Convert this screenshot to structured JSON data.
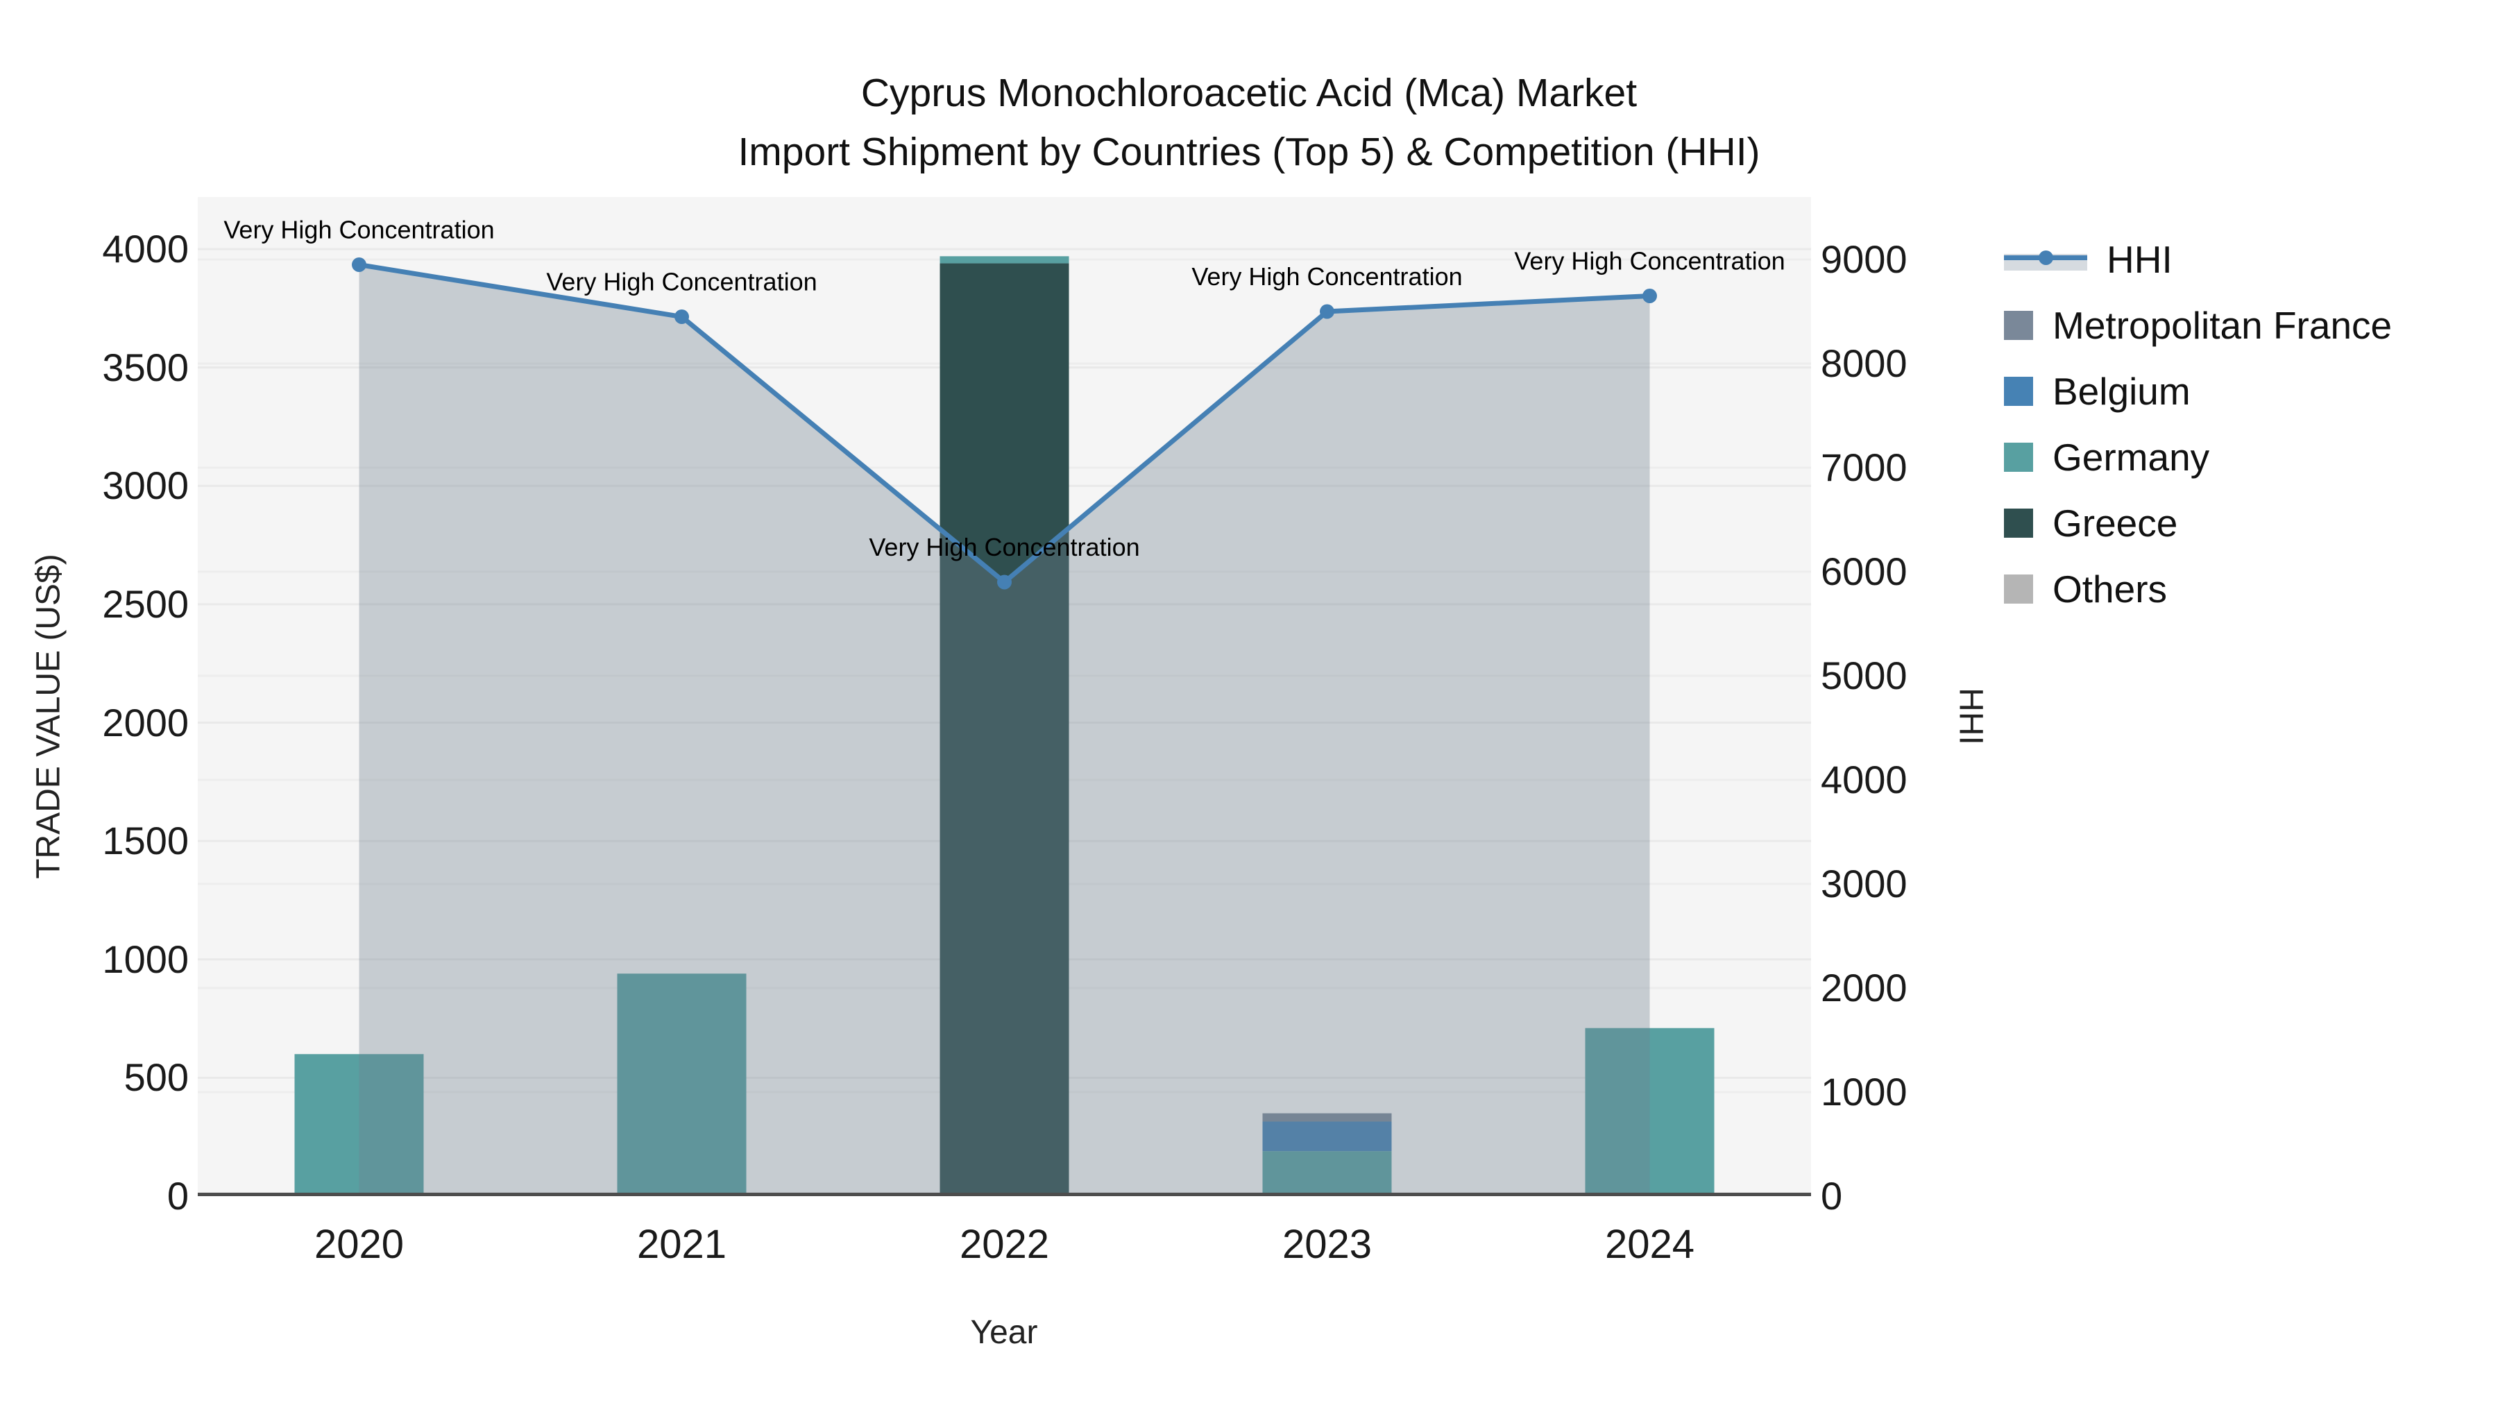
{
  "title": {
    "line1": "Cyprus Monochloroacetic Acid (Mca) Market",
    "line2": "Import Shipment by Countries (Top 5) & Competition (HHI)"
  },
  "axes": {
    "x": {
      "label": "Year",
      "categories": [
        "2020",
        "2021",
        "2022",
        "2023",
        "2024"
      ]
    },
    "y_left": {
      "label": "TRADE VALUE (US$)",
      "ticks": [
        "0",
        "500",
        "1000",
        "1500",
        "2000",
        "2500",
        "3000",
        "3500",
        "4000"
      ]
    },
    "y_right": {
      "label": "HHI",
      "ticks": [
        "0",
        "1000",
        "2000",
        "3000",
        "4000",
        "5000",
        "6000",
        "7000",
        "8000",
        "9000"
      ]
    }
  },
  "legend": {
    "items": [
      {
        "label": "HHI",
        "type": "line",
        "color": "#4580b4"
      },
      {
        "label": "Metropolitan France",
        "type": "bar",
        "color": "#7a8899"
      },
      {
        "label": "Belgium",
        "type": "bar",
        "color": "#4682b4"
      },
      {
        "label": "Germany",
        "type": "bar",
        "color": "#58a0a1"
      },
      {
        "label": "Greece",
        "type": "bar",
        "color": "#2f4f4f"
      },
      {
        "label": "Others",
        "type": "bar",
        "color": "#b5b5b5"
      }
    ]
  },
  "annotations": [
    {
      "year": "2020",
      "text": "Very High Concentration"
    },
    {
      "year": "2021",
      "text": "Very High Concentration"
    },
    {
      "year": "2022",
      "text": "Very High Concentration"
    },
    {
      "year": "2023",
      "text": "Very High Concentration"
    },
    {
      "year": "2024",
      "text": "Very High Concentration"
    }
  ],
  "chart_data": {
    "type": "bar+line",
    "title": "Cyprus Monochloroacetic Acid (Mca) Market Import Shipment by Countries (Top 5) & Competition (HHI)",
    "xlabel": "Year",
    "ylabel_left": "TRADE VALUE (US$)",
    "ylabel_right": "HHI",
    "categories": [
      "2020",
      "2021",
      "2022",
      "2023",
      "2024"
    ],
    "ylim_left": [
      0,
      4220
    ],
    "ylim_right": [
      0,
      9600
    ],
    "grid": true,
    "legend_position": "right",
    "series": [
      {
        "name": "Metropolitan France",
        "type": "bar",
        "axis": "left",
        "color": "#7a8899",
        "values": [
          0,
          0,
          0,
          35,
          0
        ]
      },
      {
        "name": "Belgium",
        "type": "bar",
        "axis": "left",
        "color": "#4682b4",
        "values": [
          0,
          0,
          0,
          125,
          0
        ]
      },
      {
        "name": "Germany",
        "type": "bar",
        "axis": "left",
        "color": "#58a0a1",
        "values": [
          600,
          940,
          30,
          190,
          710
        ]
      },
      {
        "name": "Greece",
        "type": "bar",
        "axis": "left",
        "color": "#2f4f4f",
        "values": [
          0,
          0,
          3940,
          0,
          0
        ]
      },
      {
        "name": "Others",
        "type": "bar",
        "axis": "left",
        "color": "#b5b5b5",
        "values": [
          0,
          0,
          0,
          0,
          0
        ]
      },
      {
        "name": "HHI",
        "type": "line+area",
        "axis": "right",
        "color": "#4580b4",
        "fill": "rgba(112,128,144,0.35)",
        "values": [
          8950,
          8450,
          5900,
          8500,
          8650
        ]
      }
    ],
    "stacked_bars": [
      {
        "year": "2020",
        "segments": [
          {
            "name": "Germany",
            "color": "#58a0a1",
            "value": 600
          }
        ]
      },
      {
        "year": "2021",
        "segments": [
          {
            "name": "Germany",
            "color": "#58a0a1",
            "value": 940
          }
        ]
      },
      {
        "year": "2022",
        "segments": [
          {
            "name": "Greece",
            "color": "#2f4f4f",
            "value": 3940
          },
          {
            "name": "Germany",
            "color": "#58a0a1",
            "value": 30
          }
        ]
      },
      {
        "year": "2023",
        "segments": [
          {
            "name": "Germany",
            "color": "#58a0a1",
            "value": 190
          },
          {
            "name": "Belgium",
            "color": "#4682b4",
            "value": 125
          },
          {
            "name": "Metropolitan France",
            "color": "#7a8899",
            "value": 35
          }
        ]
      },
      {
        "year": "2024",
        "segments": [
          {
            "name": "Germany",
            "color": "#58a0a1",
            "value": 710
          }
        ]
      }
    ],
    "hhi_line": {
      "values": [
        8950,
        8450,
        5900,
        8500,
        8650
      ],
      "annotation_text": "Very High Concentration"
    }
  },
  "colors": {
    "plot_background": "#f5f5f5",
    "page_background": "#ffffff",
    "gridline": "#e9e9e9",
    "axis_line": "#4d4d4d",
    "hhi_line": "#4580b4",
    "hhi_fill": "rgba(112,128,144,0.35)",
    "annotation_text": "#000000"
  }
}
